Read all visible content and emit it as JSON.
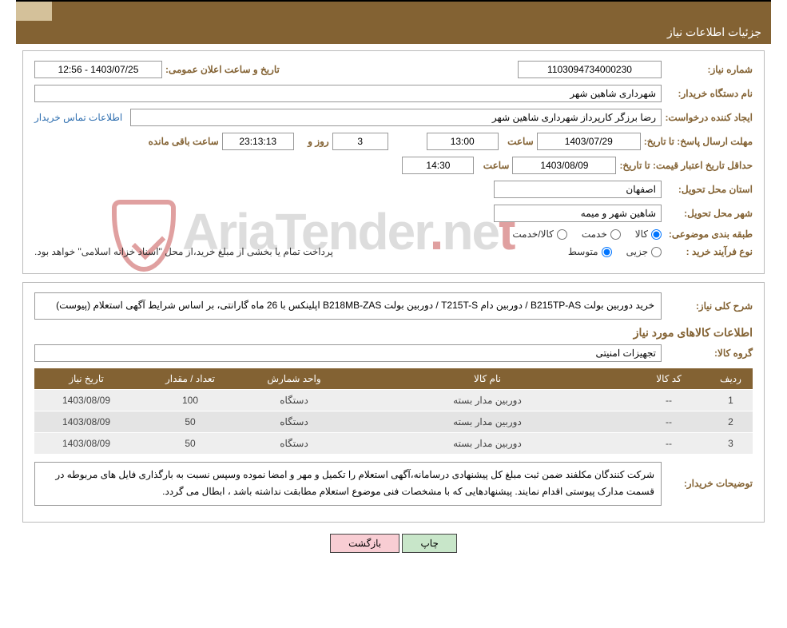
{
  "header": {
    "title": "جزئیات اطلاعات نیاز"
  },
  "fields": {
    "need_no_label": "شماره نیاز:",
    "need_no": "1103094734000230",
    "announce_label": "تاریخ و ساعت اعلان عمومی:",
    "announce": "12:56 - 1403/07/25",
    "buyer_label": "نام دستگاه خریدار:",
    "buyer": "شهرداری شاهین شهر",
    "requester_label": "ایجاد کننده درخواست:",
    "requester": "رضا برزگر کارپرداز شهرداری شاهین شهر",
    "contact_link": "اطلاعات تماس خریدار",
    "deadline_label": "مهلت ارسال پاسخ: تا تاریخ:",
    "deadline_date": "1403/07/29",
    "time_label": "ساعت",
    "deadline_time": "13:00",
    "days": "3",
    "days_label": "روز و",
    "countdown": "23:13:13",
    "remain_label": "ساعت باقی مانده",
    "price_valid_label": "حداقل تاریخ اعتبار قیمت: تا تاریخ:",
    "price_valid_date": "1403/08/09",
    "price_valid_time": "14:30",
    "province_label": "استان محل تحویل:",
    "province": "اصفهان",
    "city_label": "شهر محل تحویل:",
    "city": "شاهین شهر و میمه",
    "category_label": "طبقه بندی موضوعی:",
    "cat_goods": "کالا",
    "cat_service": "خدمت",
    "cat_goods_service": "کالا/خدمت",
    "proc_type_label": "نوع فرآیند خرید :",
    "proc_small": "جزیی",
    "proc_medium": "متوسط",
    "proc_note": "پرداخت تمام یا بخشی از مبلغ خرید،از محل \"اسناد خزانه اسلامی\" خواهد بود."
  },
  "desc_block": {
    "label": "شرح کلی نیاز:",
    "text": "خرید دوربین بولت B215TP-AS / دوربین دام T215T-S / دوربین بولت B218MB-ZAS اپلینکس با 26 ماه گارانتی، بر اساس شرایط آگهی استعلام (پیوست)"
  },
  "items_section_title": "اطلاعات کالاهای مورد نیاز",
  "group": {
    "label": "گروه کالا:",
    "value": "تجهیزات امنیتی"
  },
  "table": {
    "cols": [
      "ردیف",
      "کد کالا",
      "نام کالا",
      "واحد شمارش",
      "تعداد / مقدار",
      "تاریخ نیاز"
    ],
    "rows": [
      [
        "1",
        "--",
        "دوربین مدار بسته",
        "دستگاه",
        "100",
        "1403/08/09"
      ],
      [
        "2",
        "--",
        "دوربین مدار بسته",
        "دستگاه",
        "50",
        "1403/08/09"
      ],
      [
        "3",
        "--",
        "دوربین مدار بسته",
        "دستگاه",
        "50",
        "1403/08/09"
      ]
    ]
  },
  "buyer_notes": {
    "label": "توضیحات خریدار:",
    "text": "شرکت کنندگان مکلفند ضمن ثبت مبلغ کل پیشنهادی درسامانه،آگهی استعلام را  تکمیل و مهر و امضا نموده وسپس نسبت به بارگذاری فایل های مربوطه در قسمت مدارک پیوستی اقدام نمایند. پیشنهادهایی که با مشخصات فنی موضوع استعلام مطابقت نداشته باشد ، ابطال می گردد."
  },
  "buttons": {
    "print": "چاپ",
    "back": "بازگشت"
  }
}
